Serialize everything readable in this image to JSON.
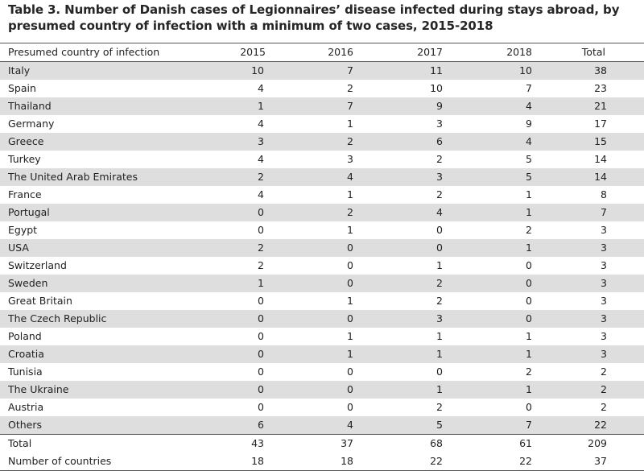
{
  "title": "Table 3. Number of Danish cases of Legionnaires’ disease infected during stays abroad, by presumed country of infection with a minimum of two cases, 2015-2018",
  "table": {
    "headers": [
      "Presumed country of infection",
      "2015",
      "2016",
      "2017",
      "2018",
      "Total"
    ],
    "rows": [
      [
        "Italy",
        "10",
        "7",
        "11",
        "10",
        "38"
      ],
      [
        "Spain",
        "4",
        "2",
        "10",
        "7",
        "23"
      ],
      [
        "Thailand",
        "1",
        "7",
        "9",
        "4",
        "21"
      ],
      [
        "Germany",
        "4",
        "1",
        "3",
        "9",
        "17"
      ],
      [
        "Greece",
        "3",
        "2",
        "6",
        "4",
        "15"
      ],
      [
        "Turkey",
        "4",
        "3",
        "2",
        "5",
        "14"
      ],
      [
        "The United Arab Emirates",
        "2",
        "4",
        "3",
        "5",
        "14"
      ],
      [
        "France",
        "4",
        "1",
        "2",
        "1",
        "8"
      ],
      [
        "Portugal",
        "0",
        "2",
        "4",
        "1",
        "7"
      ],
      [
        "Egypt",
        "0",
        "1",
        "0",
        "2",
        "3"
      ],
      [
        "USA",
        "2",
        "0",
        "0",
        "1",
        "3"
      ],
      [
        "Switzerland",
        "2",
        "0",
        "1",
        "0",
        "3"
      ],
      [
        "Sweden",
        "1",
        "0",
        "2",
        "0",
        "3"
      ],
      [
        "Great Britain",
        "0",
        "1",
        "2",
        "0",
        "3"
      ],
      [
        "The Czech Republic",
        "0",
        "0",
        "3",
        "0",
        "3"
      ],
      [
        "Poland",
        "0",
        "1",
        "1",
        "1",
        "3"
      ],
      [
        "Croatia",
        "0",
        "1",
        "1",
        "1",
        "3"
      ],
      [
        "Tunisia",
        "0",
        "0",
        "0",
        "2",
        "2"
      ],
      [
        "The Ukraine",
        "0",
        "0",
        "1",
        "1",
        "2"
      ],
      [
        "Austria",
        "0",
        "0",
        "2",
        "0",
        "2"
      ],
      [
        "Others",
        "6",
        "4",
        "5",
        "7",
        "22"
      ]
    ],
    "footer": [
      [
        "Total",
        "43",
        "37",
        "68",
        "61",
        "209"
      ],
      [
        "Number of countries",
        "18",
        "18",
        "22",
        "22",
        "37"
      ]
    ]
  },
  "colors": {
    "row_stripe": "#dedede",
    "rule": "#555555",
    "text": "#222222"
  }
}
